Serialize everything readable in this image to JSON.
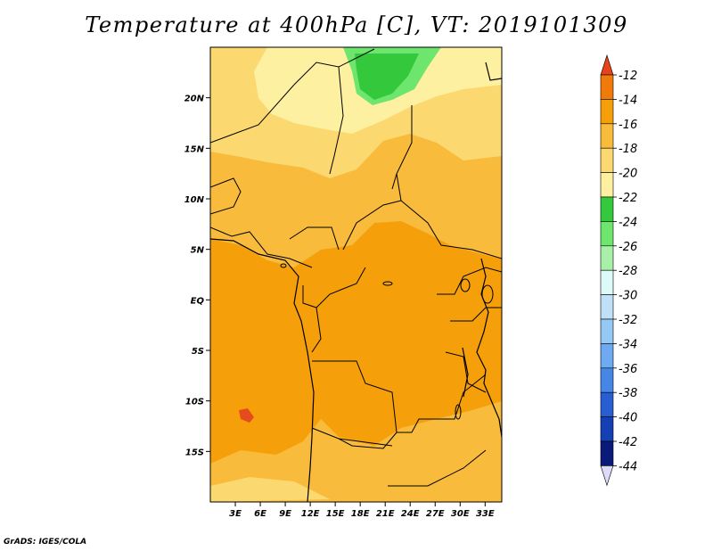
{
  "title": "Temperature at 400hPa [C], VT: 2019101309",
  "credit": "GrADS: IGES/COLA",
  "map": {
    "lon_range": [
      0,
      35
    ],
    "lat_range": [
      -20,
      25
    ],
    "x_ticks": [
      "3E",
      "6E",
      "9E",
      "12E",
      "15E",
      "18E",
      "21E",
      "24E",
      "27E",
      "30E",
      "33E"
    ],
    "y_ticks": [
      "20N",
      "15N",
      "10N",
      "5N",
      "EQ",
      "5S",
      "10S",
      "15S"
    ]
  },
  "colorbar": {
    "labels": [
      "-12",
      "-14",
      "-16",
      "-18",
      "-20",
      "-22",
      "-24",
      "-26",
      "-28",
      "-30",
      "-32",
      "-34",
      "-36",
      "-38",
      "-40",
      "-42",
      "-44"
    ],
    "colors": [
      "#e64b1e",
      "#f07a0a",
      "#f5a00a",
      "#f8bb3c",
      "#fbd870",
      "#fdf0a0",
      "#34c83c",
      "#6ee66e",
      "#a8f0a8",
      "#dcfaf8",
      "#c0e0f8",
      "#96c8f4",
      "#6eaaf0",
      "#4686e6",
      "#285ed2",
      "#1440b4",
      "#0a1a78"
    ],
    "top_arrow_color": "#e8421a",
    "bottom_arrow_color": "#dcdcf8"
  }
}
